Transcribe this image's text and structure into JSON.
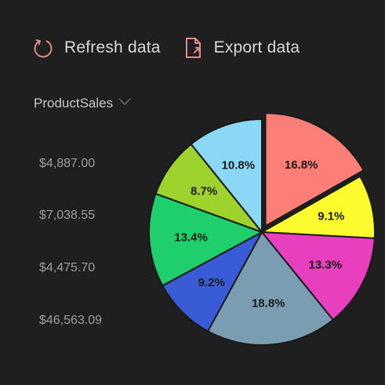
{
  "toolbar": {
    "refresh_label": "Refresh data",
    "export_label": "Export data",
    "icon_color": "#e08a8a"
  },
  "field_selector": {
    "selected": "ProductSales"
  },
  "sales_values": [
    "$4,887.00",
    "$7,038.55",
    "$4,475.70",
    "$46,563.09"
  ],
  "chart_data": {
    "type": "pie",
    "categories": [
      "",
      "",
      "",
      "",
      "",
      "",
      "",
      ""
    ],
    "values": [
      16.8,
      9.1,
      13.3,
      18.8,
      9.2,
      13.4,
      8.7,
      10.8
    ],
    "labels": [
      "16.8%",
      "9.1%",
      "13.3%",
      "18.8%",
      "9.2%",
      "13.4%",
      "8.7%",
      "10.8%"
    ],
    "colors": [
      "#fb7f76",
      "#fbfb2d",
      "#e83fbe",
      "#7b9db2",
      "#3a5bd6",
      "#1fcf6c",
      "#9ed22c",
      "#8ad8f5"
    ],
    "exploded_index": 0,
    "title": "",
    "xlabel": "",
    "ylabel": ""
  }
}
